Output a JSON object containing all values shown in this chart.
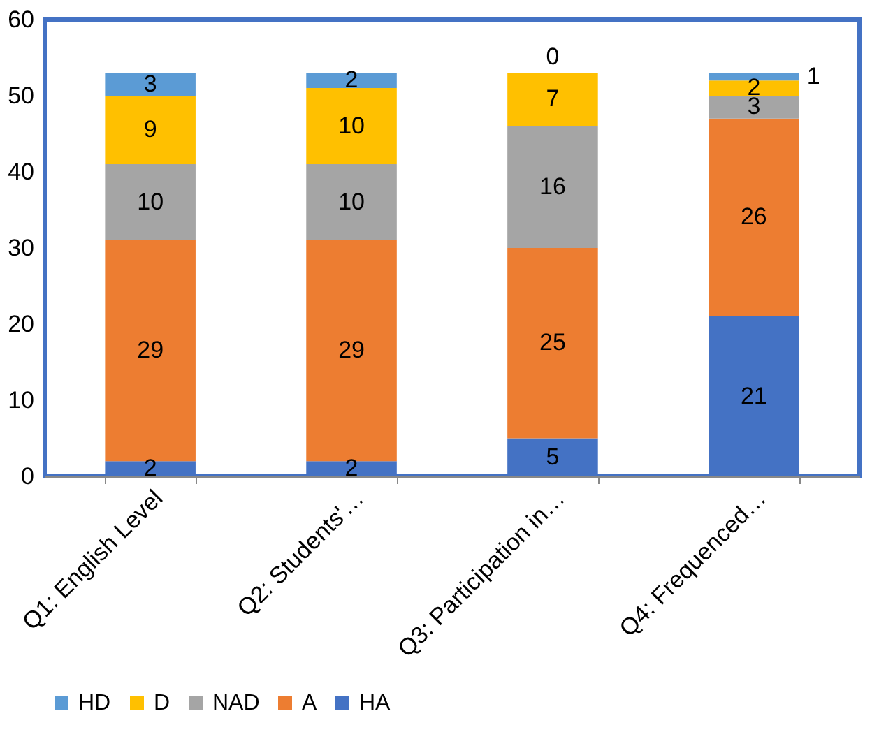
{
  "chart_data": {
    "type": "bar",
    "stacked": true,
    "categories": [
      "Q1: English Level",
      "Q2: Students'…",
      "Q3: Participation in…",
      "Q4: Frequenced…"
    ],
    "series": [
      {
        "name": "HA",
        "color": "#4472c4",
        "values": [
          2,
          2,
          5,
          21
        ]
      },
      {
        "name": "A",
        "color": "#ed7d31",
        "values": [
          29,
          29,
          25,
          26
        ]
      },
      {
        "name": "NAD",
        "color": "#a5a5a5",
        "values": [
          10,
          10,
          16,
          3
        ]
      },
      {
        "name": "D",
        "color": "#ffc000",
        "values": [
          9,
          10,
          7,
          2
        ]
      },
      {
        "name": "HD",
        "color": "#5b9bd5",
        "values": [
          3,
          2,
          0,
          1
        ]
      }
    ],
    "ylim": [
      0,
      60
    ],
    "yticks": [
      0,
      10,
      20,
      30,
      40,
      50,
      60
    ],
    "grid": false,
    "legend": "bottom",
    "data_labels": true
  }
}
